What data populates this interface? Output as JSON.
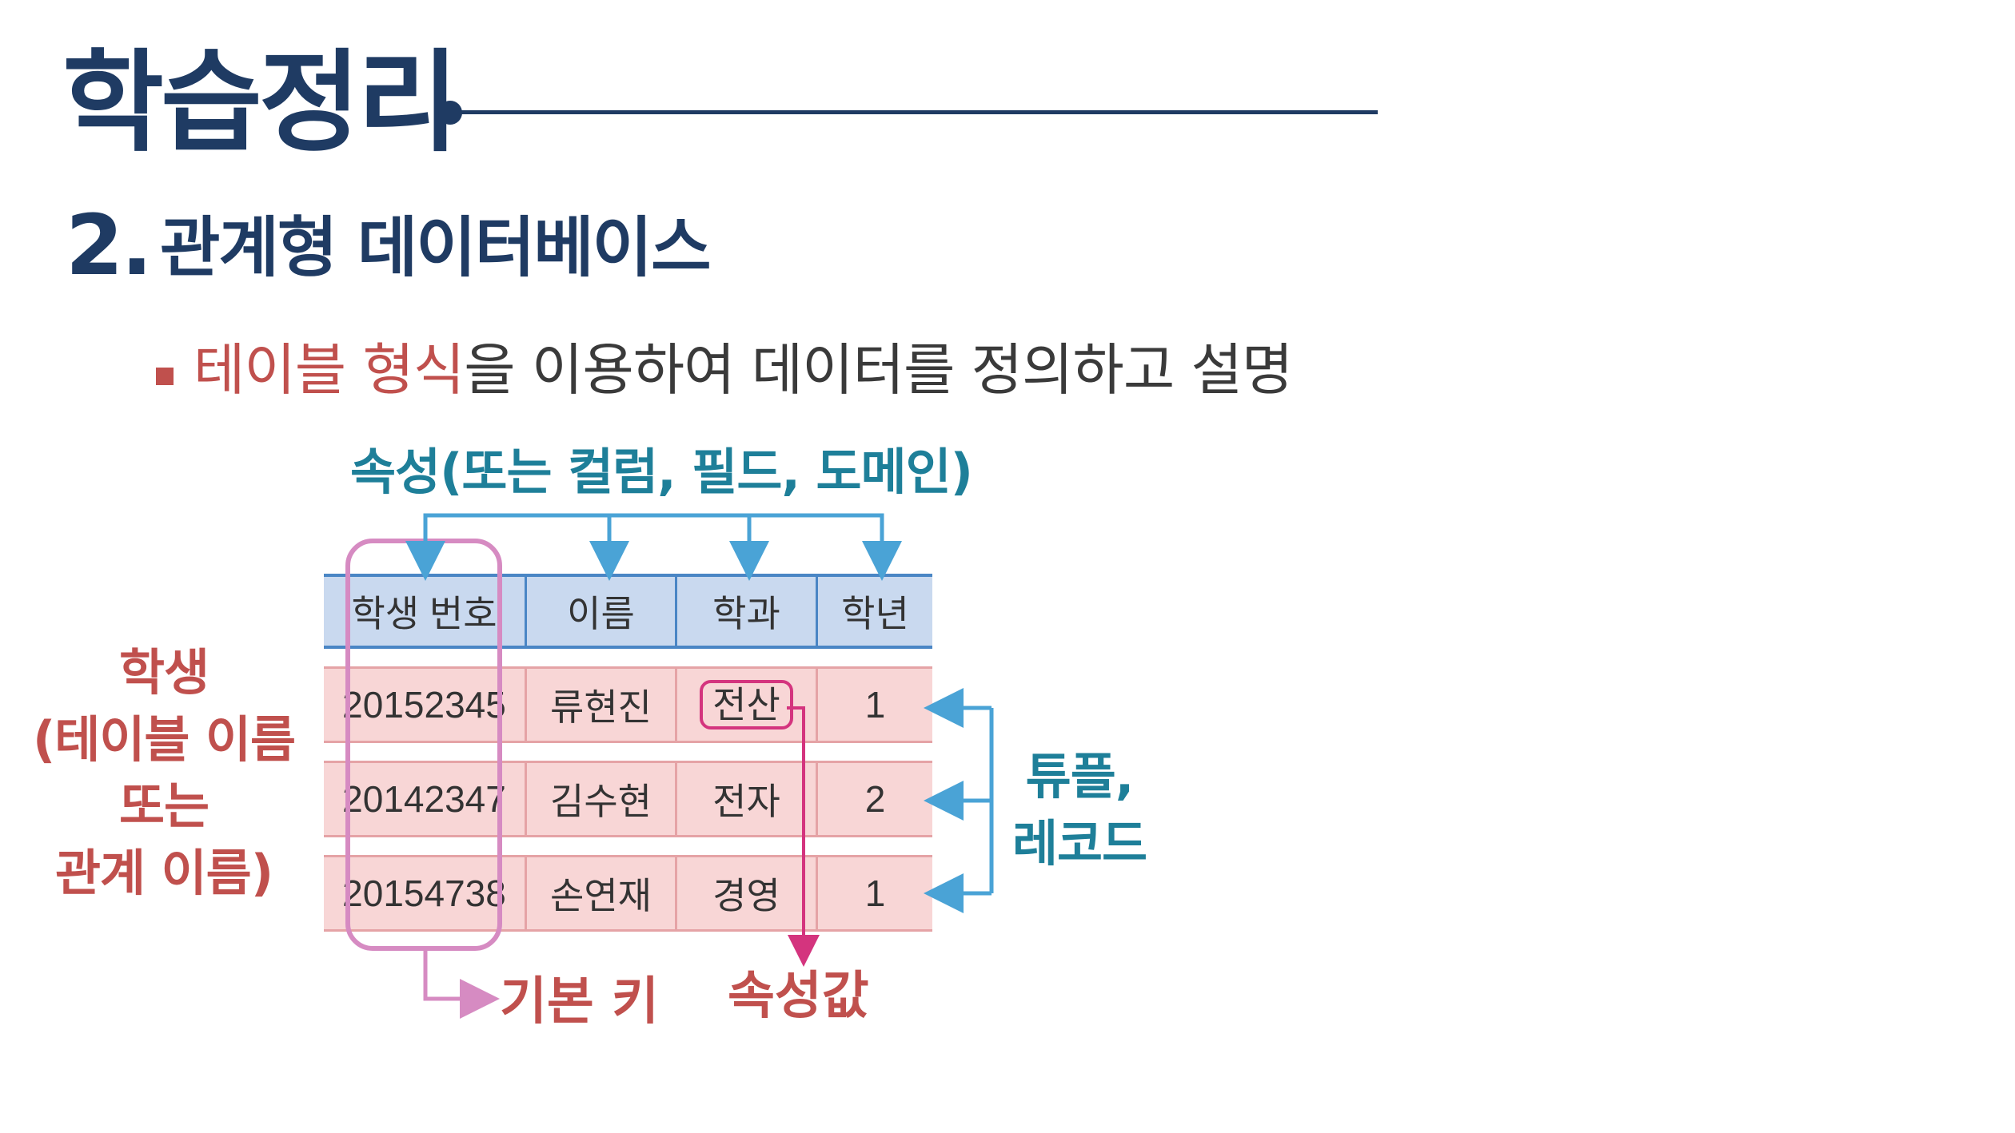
{
  "title": "학습정리",
  "subtitle": {
    "number": "2.",
    "text": "관계형 데이터베이스"
  },
  "bullet": {
    "highlight": "테이블 형식",
    "rest": "을 이용하여 데이터를 정의하고 설명"
  },
  "diagram": {
    "attribute_label": "속성(또는 컬럼, 필드, 도메인)",
    "table_name_lines": [
      "학생",
      "(테이블 이름",
      "또는",
      "관계 이름)"
    ],
    "tuple_label_lines": [
      "튜플,",
      "레코드"
    ],
    "primary_key_label": "기본 키",
    "attribute_value_label": "속성값",
    "table": {
      "headers": [
        "학생 번호",
        "이름",
        "학과",
        "학년"
      ],
      "rows": [
        [
          "20152345",
          "류현진",
          "전산",
          "1"
        ],
        [
          "20142347",
          "김수현",
          "전자",
          "2"
        ],
        [
          "20154738",
          "손연재",
          "경영",
          "1"
        ]
      ]
    },
    "colors": {
      "title": "#1f3b63",
      "accent_red": "#c0504d",
      "accent_teal": "#1e7f99",
      "arrow_blue": "#4aa3d6",
      "pk_frame": "#d68bc2",
      "value_box": "#d4347e",
      "header_fill": "#c9d9ef",
      "row_fill": "#f8d6d6"
    }
  }
}
